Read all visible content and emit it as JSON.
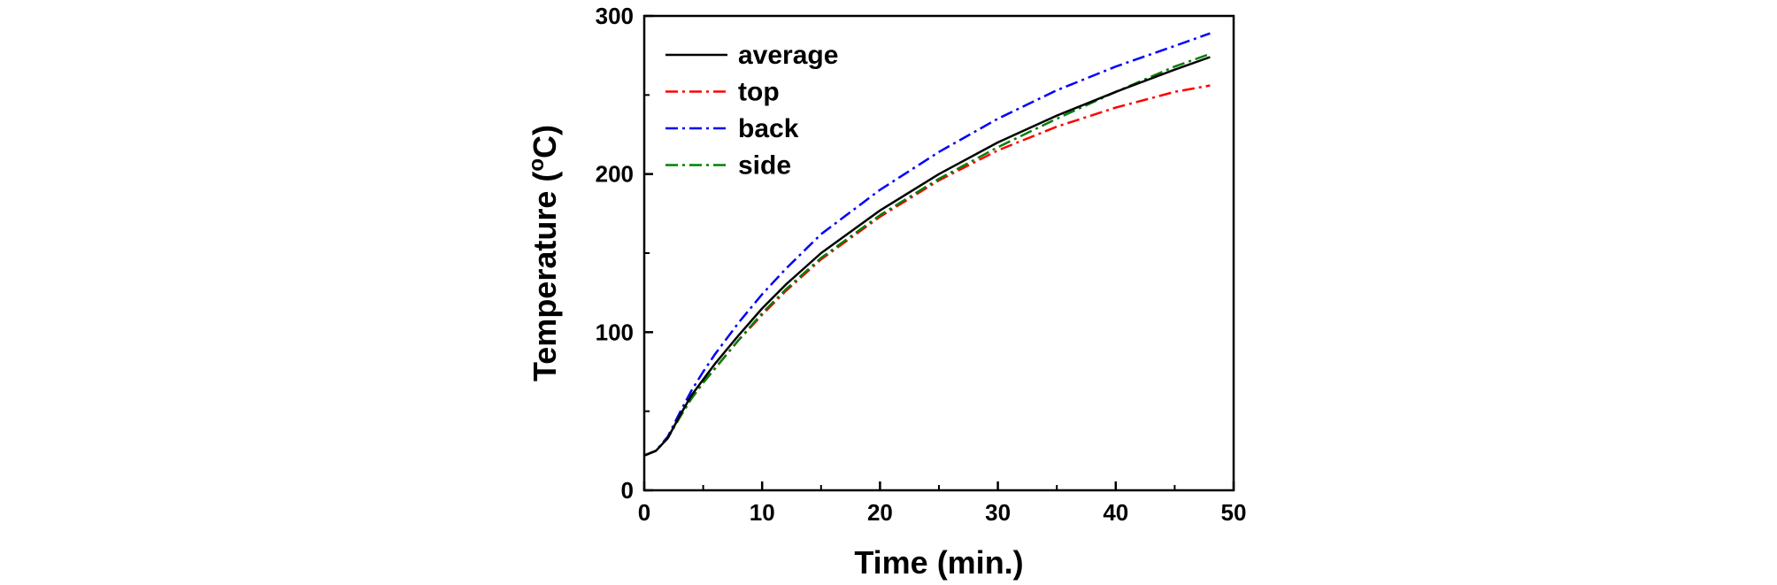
{
  "chart_data": {
    "type": "line",
    "xlabel": "Time (min.)",
    "ylabel_main": "Temperature (",
    "ylabel_sup": "o",
    "ylabel_end": "C)",
    "xlim": [
      0,
      50
    ],
    "ylim": [
      0,
      300
    ],
    "x_ticks": [
      "0",
      "10",
      "20",
      "30",
      "40",
      "50"
    ],
    "y_ticks": [
      "0",
      "100",
      "200",
      "300"
    ],
    "grid": false,
    "legend_position": "top-left",
    "series": [
      {
        "name": "average",
        "color": "#000000",
        "style": "solid",
        "x": [
          0,
          1,
          2,
          3,
          4,
          5,
          6,
          8,
          10,
          12,
          15,
          20,
          25,
          30,
          35,
          40,
          45,
          48
        ],
        "y": [
          22,
          25,
          33,
          47,
          60,
          70,
          80,
          98,
          115,
          130,
          150,
          177,
          200,
          220,
          237,
          252,
          266,
          274
        ]
      },
      {
        "name": "top",
        "color": "#ff0000",
        "style": "dashdot",
        "x": [
          0,
          1,
          2,
          3,
          4,
          5,
          6,
          8,
          10,
          12,
          15,
          20,
          25,
          30,
          35,
          40,
          45,
          48
        ],
        "y": [
          22,
          25,
          33,
          46,
          58,
          68,
          77,
          95,
          111,
          126,
          146,
          173,
          196,
          215,
          230,
          242,
          252,
          256
        ]
      },
      {
        "name": "back",
        "color": "#0000ff",
        "style": "dashdot",
        "x": [
          0,
          1,
          2,
          3,
          4,
          5,
          6,
          8,
          10,
          12,
          15,
          20,
          25,
          30,
          35,
          40,
          45,
          48
        ],
        "y": [
          22,
          25,
          34,
          49,
          63,
          75,
          86,
          106,
          124,
          140,
          162,
          190,
          214,
          235,
          253,
          268,
          281,
          289
        ]
      },
      {
        "name": "side",
        "color": "#008000",
        "style": "dashdot",
        "x": [
          0,
          1,
          2,
          3,
          4,
          5,
          6,
          8,
          10,
          12,
          15,
          20,
          25,
          30,
          35,
          40,
          45,
          48
        ],
        "y": [
          22,
          25,
          33,
          46,
          58,
          68,
          77,
          95,
          112,
          127,
          147,
          174,
          197,
          217,
          235,
          252,
          268,
          276
        ]
      }
    ]
  }
}
